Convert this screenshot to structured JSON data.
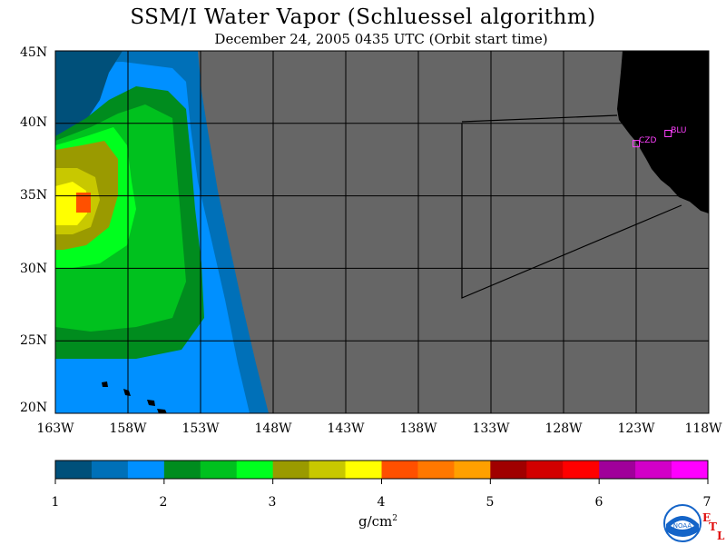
{
  "title": "SSM/I Water Vapor (Schluessel algorithm)",
  "subtitle": "December 24, 2005   0435 UTC  (Orbit start time)",
  "map": {
    "lon_range": [
      -163,
      -118
    ],
    "lat_range": [
      20,
      45
    ],
    "land_color": "#000000",
    "no_data_color": "#666666",
    "grid_color": "#000000"
  },
  "lat_labels": [
    "45N",
    "40N",
    "35N",
    "30N",
    "25N",
    "20N"
  ],
  "lon_labels": [
    "163W",
    "158W",
    "153W",
    "148W",
    "143W",
    "138W",
    "133W",
    "128W",
    "123W",
    "118W"
  ],
  "stations": [
    {
      "id": "CZD",
      "label": "CZD",
      "lon": -123.0,
      "lat": 38.6
    },
    {
      "id": "BLU",
      "label": "BLU",
      "lon": -120.8,
      "lat": 39.3
    }
  ],
  "colorbar": {
    "ticks": [
      "1",
      "2",
      "3",
      "4",
      "5",
      "6",
      "7"
    ],
    "unit_main": "g/cm",
    "unit_sup": "2",
    "colors": [
      "#00507a",
      "#0070b8",
      "#0090ff",
      "#008c1e",
      "#00c11e",
      "#00ff1e",
      "#9a9a00",
      "#c8c800",
      "#ffff00",
      "#ff5000",
      "#ff7800",
      "#ffa000",
      "#a00000",
      "#d20000",
      "#ff0000",
      "#a0009a",
      "#d200c8",
      "#ff00ff"
    ]
  },
  "logo": {
    "text": "NOAA",
    "letters": [
      "E",
      "T",
      "L"
    ],
    "accent": "#1464c8"
  }
}
